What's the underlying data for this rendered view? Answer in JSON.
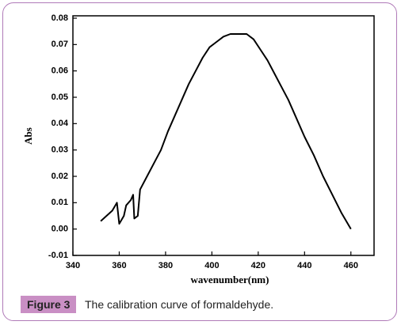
{
  "chart_data": {
    "type": "line",
    "x_label": "wavenumber(nm)",
    "y_label": "Abs",
    "x": [
      352,
      357,
      359,
      360,
      362,
      363,
      365,
      366,
      366.5,
      368,
      369,
      372,
      375,
      378,
      381,
      384,
      387,
      390,
      393,
      396,
      399,
      402,
      405,
      408,
      412,
      415,
      418,
      421,
      424,
      427,
      430,
      433,
      436,
      440,
      444,
      448,
      452,
      456,
      460
    ],
    "values": [
      0.003,
      0.007,
      0.01,
      0.002,
      0.005,
      0.009,
      0.011,
      0.013,
      0.004,
      0.005,
      0.015,
      0.02,
      0.025,
      0.03,
      0.037,
      0.043,
      0.049,
      0.055,
      0.06,
      0.065,
      0.069,
      0.071,
      0.073,
      0.074,
      0.074,
      0.074,
      0.072,
      0.068,
      0.064,
      0.059,
      0.054,
      0.049,
      0.043,
      0.035,
      0.028,
      0.02,
      0.013,
      0.006,
      0.0
    ],
    "color": "#000000",
    "xlim": [
      340,
      470
    ],
    "xticks": [
      340,
      360,
      380,
      400,
      420,
      440,
      460
    ],
    "ylim": [
      -0.01,
      0.08
    ],
    "yticks": [
      {
        "value": -0.01,
        "label": "-0.01"
      },
      {
        "value": 0,
        "label": "0.00"
      },
      {
        "value": 0.01,
        "label": "0.01"
      },
      {
        "value": 0.02,
        "label": "0.02"
      },
      {
        "value": 0.03,
        "label": "0.03"
      },
      {
        "value": 0.04,
        "label": "0.04"
      },
      {
        "value": 0.05,
        "label": "0.05"
      },
      {
        "value": 0.06,
        "label": "0.06"
      },
      {
        "value": 0.07,
        "label": "0.07"
      },
      {
        "value": 0.08,
        "label": "0.08"
      }
    ],
    "grid": false
  },
  "figure": {
    "label": "Figure 3",
    "caption": "The calibration curve of formaldehyde."
  }
}
